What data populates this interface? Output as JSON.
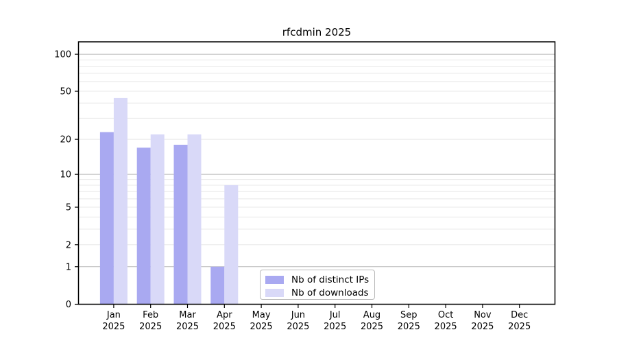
{
  "chart_data": {
    "type": "bar",
    "title": "rfcdmin 2025",
    "x_tick_months": [
      "Jan",
      "Feb",
      "Mar",
      "Apr",
      "May",
      "Jun",
      "Jul",
      "Aug",
      "Sep",
      "Oct",
      "Nov",
      "Dec"
    ],
    "x_tick_year": "2025",
    "series": [
      {
        "name": "Nb of distinct IPs",
        "color": "#a9a9f1",
        "values": [
          23,
          17,
          18,
          1,
          0,
          0,
          0,
          0,
          0,
          0,
          0,
          0
        ]
      },
      {
        "name": "Nb of downloads",
        "color": "#d9d9f8",
        "values": [
          44,
          22,
          22,
          8,
          0,
          0,
          0,
          0,
          0,
          0,
          0,
          0
        ]
      }
    ],
    "yticks": [
      0,
      1,
      2,
      5,
      10,
      20,
      50,
      100
    ],
    "major_gridlines": [
      1,
      10,
      100
    ],
    "minor_gridlines": [
      2,
      3,
      4,
      5,
      6,
      7,
      8,
      9,
      20,
      30,
      40,
      50,
      60,
      70,
      80,
      90
    ],
    "y_scale": "log10(value+1)",
    "ylim": [
      0,
      126
    ],
    "grid": "horizontal",
    "legend_position": "inside lower center-left"
  },
  "colors": {
    "axis": "#000000",
    "major_grid": "#b8b8b8",
    "minor_grid": "#e8e8e8",
    "tick_label": "#000000",
    "background": "#ffffff"
  }
}
